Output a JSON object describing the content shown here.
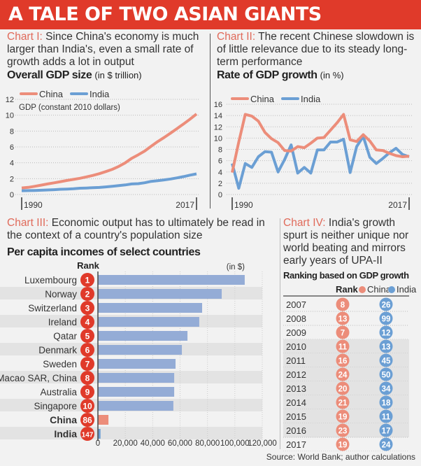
{
  "title": "A TALE OF TWO ASIAN GIANTS",
  "colors": {
    "china": "#ec8d7a",
    "india": "#6b9fd4",
    "bar": "#94acd6",
    "accent": "#e03a2a",
    "rank_badge": "#e03a2a"
  },
  "chart1": {
    "label": "Chart I:",
    "text": "Since China's economy is much larger than India's, even a small rate of growth adds a lot in output"
  },
  "chart2": {
    "label": "Chart II:",
    "text": "The recent Chinese slowdown is of little relevance due to its steady long-term performance"
  },
  "chart3": {
    "label": "Chart III:",
    "text": "Economic output has to ultimately be read in the context of a country's population size"
  },
  "chart4": {
    "label": "Chart IV:",
    "text": "India's growth spurt is neither unique nor world beating and mirrors early years of UPA-II"
  },
  "source": "Source: World Bank; author calculations",
  "chart_data": [
    {
      "type": "line",
      "title": "Overall GDP size",
      "title_unit": "(in $ trillion)",
      "ylabel": "GDP (constant 2010 dollars)",
      "x": [
        1990,
        1991,
        1992,
        1993,
        1994,
        1995,
        1996,
        1997,
        1998,
        1999,
        2000,
        2001,
        2002,
        2003,
        2004,
        2005,
        2006,
        2007,
        2008,
        2009,
        2010,
        2011,
        2012,
        2013,
        2014,
        2015,
        2016,
        2017
      ],
      "x_tick_labels": [
        "1990",
        "2017"
      ],
      "ylim": [
        0,
        12
      ],
      "y_ticks": [
        "0",
        "2",
        "4",
        "6",
        "8",
        "10",
        "12"
      ],
      "grid": true,
      "legend": "top-left",
      "series": [
        {
          "name": "China",
          "values": [
            0.83,
            0.9,
            1.03,
            1.18,
            1.33,
            1.47,
            1.62,
            1.77,
            1.91,
            2.05,
            2.22,
            2.41,
            2.63,
            2.89,
            3.18,
            3.55,
            4.0,
            4.57,
            5.01,
            5.48,
            6.09,
            6.67,
            7.19,
            7.75,
            8.32,
            8.9,
            9.5,
            10.16
          ]
        },
        {
          "name": "India",
          "values": [
            0.48,
            0.49,
            0.51,
            0.54,
            0.57,
            0.61,
            0.66,
            0.69,
            0.73,
            0.79,
            0.82,
            0.86,
            0.89,
            0.96,
            1.03,
            1.12,
            1.21,
            1.33,
            1.37,
            1.48,
            1.66,
            1.75,
            1.84,
            1.96,
            2.1,
            2.26,
            2.44,
            2.6
          ]
        }
      ]
    },
    {
      "type": "line",
      "title": "Rate of GDP growth",
      "title_unit": "(in %)",
      "x": [
        1990,
        1991,
        1992,
        1993,
        1994,
        1995,
        1996,
        1997,
        1998,
        1999,
        2000,
        2001,
        2002,
        2003,
        2004,
        2005,
        2006,
        2007,
        2008,
        2009,
        2010,
        2011,
        2012,
        2013,
        2014,
        2015,
        2016,
        2017
      ],
      "x_tick_labels": [
        "1990",
        "2017"
      ],
      "ylim": [
        0,
        16
      ],
      "y_ticks": [
        "0",
        "2",
        "4",
        "6",
        "8",
        "10",
        "12",
        "14",
        "16"
      ],
      "grid": true,
      "legend": "top-left",
      "series": [
        {
          "name": "China",
          "values": [
            3.9,
            9.3,
            14.2,
            13.9,
            13.0,
            11.0,
            9.9,
            9.2,
            7.8,
            7.7,
            8.5,
            8.3,
            9.1,
            10.0,
            10.1,
            11.4,
            12.7,
            14.2,
            9.7,
            9.4,
            10.6,
            9.5,
            7.9,
            7.8,
            7.3,
            6.9,
            6.7,
            6.8
          ]
        },
        {
          "name": "India",
          "values": [
            5.5,
            1.1,
            5.5,
            4.8,
            6.7,
            7.6,
            7.5,
            4.0,
            6.2,
            8.8,
            3.8,
            4.8,
            3.8,
            7.9,
            7.9,
            9.3,
            9.3,
            9.8,
            3.9,
            8.5,
            10.3,
            6.6,
            5.5,
            6.4,
            7.4,
            8.2,
            7.1,
            6.7
          ]
        }
      ]
    },
    {
      "type": "bar",
      "orientation": "horizontal",
      "title": "Per capita incomes of select countries",
      "rank_header": "Rank",
      "unit": "(in $)",
      "categories": [
        "Luxembourg",
        "Norway",
        "Switzerland",
        "Ireland",
        "Qatar",
        "Denmark",
        "Sweden",
        "Macao SAR, China",
        "Australia",
        "Singapore",
        "China",
        "India"
      ],
      "ranks": [
        "1",
        "2",
        "3",
        "4",
        "5",
        "6",
        "7",
        "8",
        "9",
        "10",
        "86",
        "147"
      ],
      "values": [
        107200,
        90400,
        76100,
        74000,
        65400,
        61300,
        56700,
        55700,
        55700,
        55100,
        7700,
        1900
      ],
      "bar_colors": [
        "#94acd6",
        "#94acd6",
        "#94acd6",
        "#94acd6",
        "#94acd6",
        "#94acd6",
        "#94acd6",
        "#94acd6",
        "#94acd6",
        "#94acd6",
        "#ec8d7a",
        "#6b9fd4"
      ],
      "xlim": [
        0,
        120000
      ],
      "x_ticks": [
        "0",
        "20,000",
        "40,000",
        "60,000",
        "80,000",
        "100,000",
        "120,000"
      ],
      "grid": true
    },
    {
      "type": "table",
      "title": "Ranking based on GDP growth",
      "columns": [
        "Rank",
        "China",
        "India"
      ],
      "rows": [
        {
          "year": "2007",
          "china": "8",
          "india": "26"
        },
        {
          "year": "2008",
          "china": "13",
          "india": "99"
        },
        {
          "year": "2009",
          "china": "7",
          "india": "12"
        },
        {
          "year": "2010",
          "china": "11",
          "india": "13"
        },
        {
          "year": "2011",
          "china": "16",
          "india": "45"
        },
        {
          "year": "2012",
          "china": "24",
          "india": "50"
        },
        {
          "year": "2013",
          "china": "20",
          "india": "34"
        },
        {
          "year": "2014",
          "china": "21",
          "india": "18"
        },
        {
          "year": "2015",
          "china": "19",
          "india": "11"
        },
        {
          "year": "2016",
          "china": "23",
          "india": "17"
        },
        {
          "year": "2017",
          "china": "19",
          "india": "24"
        }
      ]
    }
  ]
}
